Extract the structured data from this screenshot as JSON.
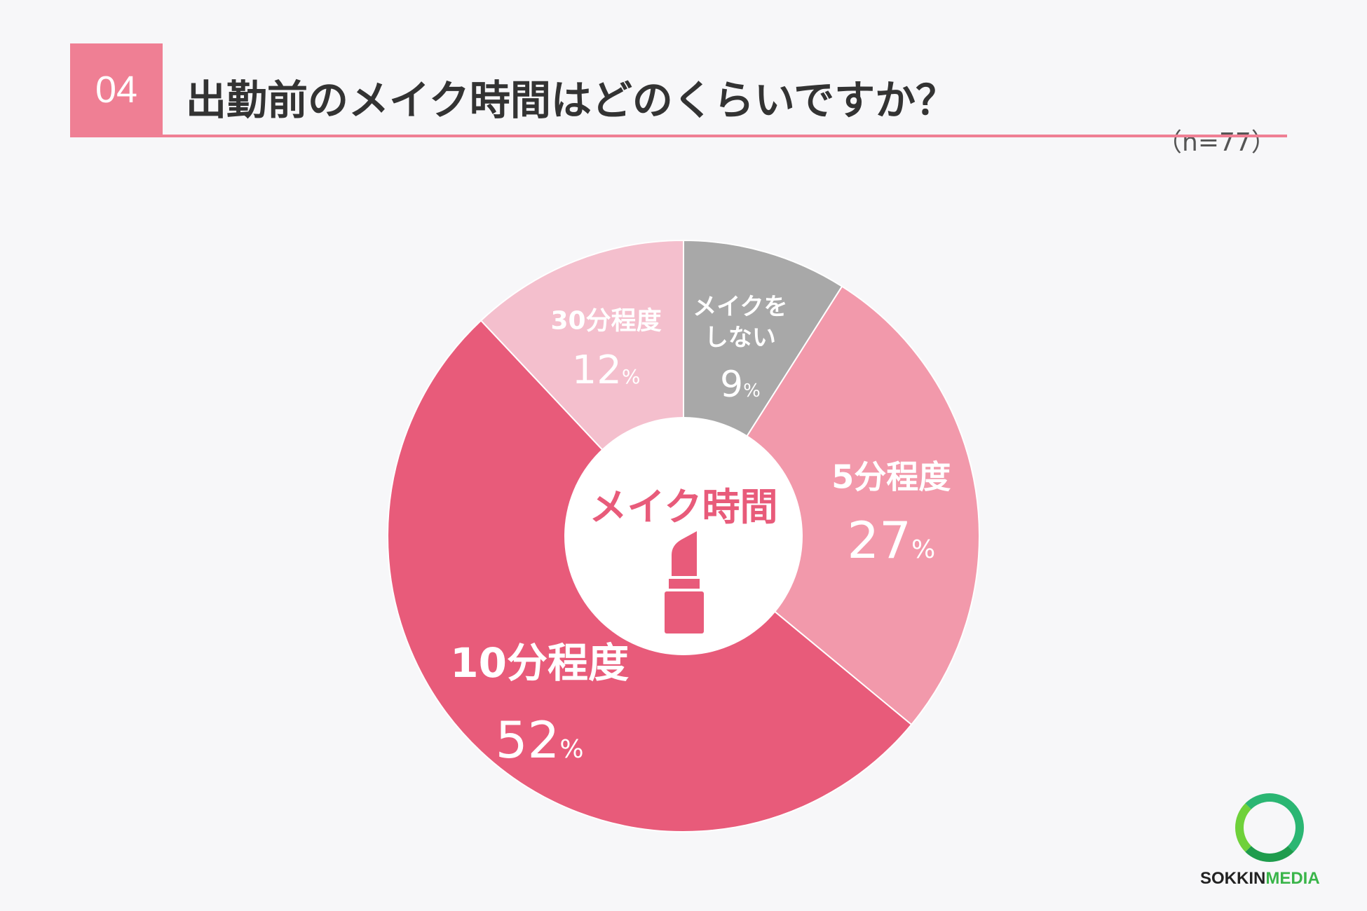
{
  "header": {
    "number": "04",
    "title": "出勤前のメイク時間はどのくらいですか？",
    "sample": "（n=77）"
  },
  "chart_data": {
    "type": "pie",
    "categories": [
      "メイクをしない",
      "5分程度",
      "10分程度",
      "30分程度"
    ],
    "values": [
      9,
      27,
      52,
      12
    ],
    "value_suffix": "%",
    "center_label": "メイク時間",
    "colors": [
      "#a8a8a8",
      "#f299ab",
      "#e85b7a",
      "#f4bfcd"
    ],
    "legend": "none"
  },
  "logo": {
    "brand": "SOKKIN",
    "brand2": "MEDIA"
  }
}
